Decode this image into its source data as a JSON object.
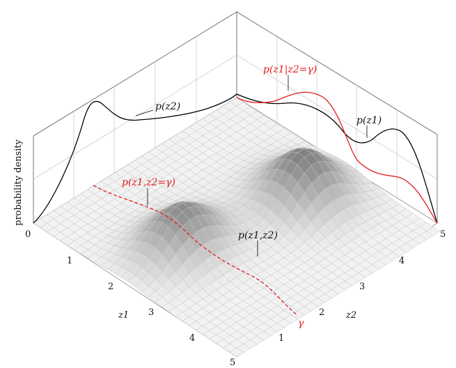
{
  "figure": {
    "y_axis_label": "probability density",
    "x_axis_label": "z1",
    "z_axis_label": "z2",
    "z1_ticks": [
      "0",
      "1",
      "2",
      "3",
      "4",
      "5"
    ],
    "z2_ticks": [
      "1",
      "2",
      "3",
      "4",
      "5"
    ],
    "gamma_label": "γ",
    "annotations": {
      "marginal_z2": "p(z2)",
      "marginal_z1": "p(z1)",
      "conditional": "p(z1|z2=γ)",
      "joint": "p(z1,z2)",
      "slice": "p(z1,z2=γ)"
    }
  },
  "colors": {
    "black_curve": "#000000",
    "red_curve": "#e41a1c",
    "surface_dark": "#7a7a7a",
    "surface_light": "#f2f2f2",
    "grid": "#b8b8b8"
  }
}
